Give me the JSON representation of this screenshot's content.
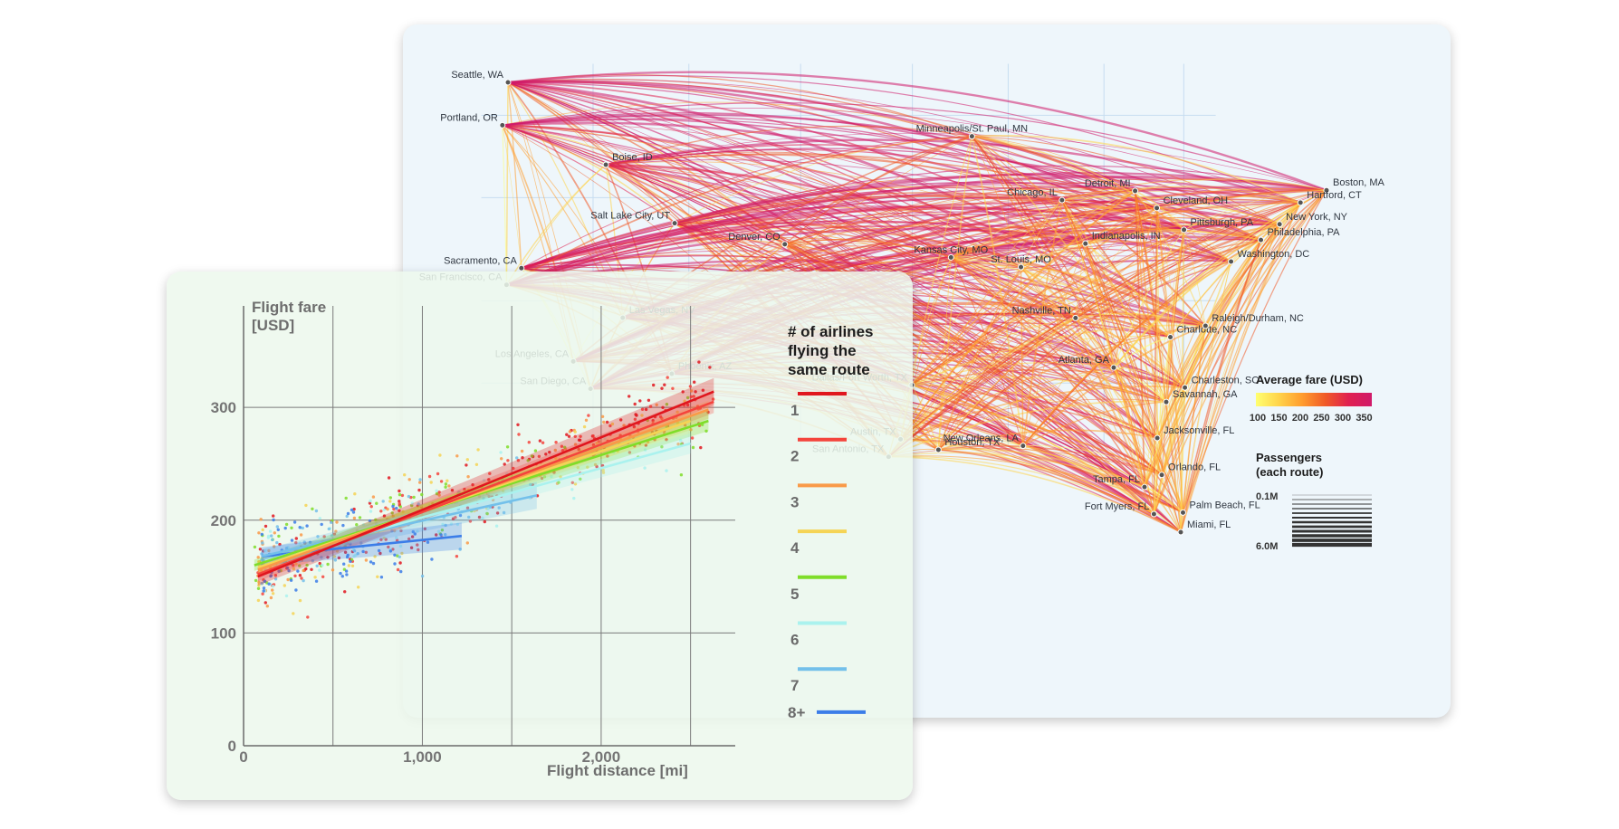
{
  "map": {
    "cities": [
      {
        "name": "Seattle, WA",
        "lon": -122.33,
        "lat": 47.6
      },
      {
        "name": "Portland, OR",
        "lon": -122.68,
        "lat": 45.52
      },
      {
        "name": "Boise, ID",
        "lon": -116.2,
        "lat": 43.6
      },
      {
        "name": "Salt Lake City, UT",
        "lon": -111.89,
        "lat": 40.76
      },
      {
        "name": "Sacramento, CA",
        "lon": -121.49,
        "lat": 38.58
      },
      {
        "name": "San Francisco, CA",
        "lon": -122.42,
        "lat": 37.77
      },
      {
        "name": "Las Vegas, NV",
        "lon": -115.14,
        "lat": 36.17
      },
      {
        "name": "Los Angeles, CA",
        "lon": -118.24,
        "lat": 34.05
      },
      {
        "name": "San Diego, CA",
        "lon": -117.16,
        "lat": 32.72
      },
      {
        "name": "Phoenix, AZ",
        "lon": -112.07,
        "lat": 33.45
      },
      {
        "name": "Denver, CO",
        "lon": -104.99,
        "lat": 39.74
      },
      {
        "name": "Minneapolis/St. Paul, MN",
        "lon": -93.27,
        "lat": 44.98
      },
      {
        "name": "Kansas City, MO",
        "lon": -94.58,
        "lat": 39.1
      },
      {
        "name": "Dallas/Fort Worth, TX",
        "lon": -97.04,
        "lat": 32.9
      },
      {
        "name": "Austin, TX",
        "lon": -97.74,
        "lat": 30.27
      },
      {
        "name": "San Antonio, TX",
        "lon": -98.49,
        "lat": 29.42
      },
      {
        "name": "Houston, TX",
        "lon": -95.37,
        "lat": 29.76
      },
      {
        "name": "New Orleans, LA",
        "lon": -90.07,
        "lat": 29.95
      },
      {
        "name": "Chicago, IL",
        "lon": -87.63,
        "lat": 41.88
      },
      {
        "name": "St. Louis, MO",
        "lon": -90.2,
        "lat": 38.63
      },
      {
        "name": "Detroit, MI",
        "lon": -83.05,
        "lat": 42.33
      },
      {
        "name": "Cleveland, OH",
        "lon": -81.69,
        "lat": 41.5
      },
      {
        "name": "Indianapolis, IN",
        "lon": -86.16,
        "lat": 39.77
      },
      {
        "name": "Nashville, TN",
        "lon": -86.78,
        "lat": 36.16
      },
      {
        "name": "Atlanta, GA",
        "lon": -84.39,
        "lat": 33.75
      },
      {
        "name": "Pittsburgh, PA",
        "lon": -79.99,
        "lat": 40.44
      },
      {
        "name": "Charlotte, NC",
        "lon": -80.84,
        "lat": 35.23
      },
      {
        "name": "Raleigh/Durham, NC",
        "lon": -78.64,
        "lat": 35.78
      },
      {
        "name": "Charleston, SC",
        "lon": -79.93,
        "lat": 32.78
      },
      {
        "name": "Savannah, GA",
        "lon": -81.1,
        "lat": 32.08
      },
      {
        "name": "Jacksonville, FL",
        "lon": -81.66,
        "lat": 30.33
      },
      {
        "name": "Orlando, FL",
        "lon": -81.38,
        "lat": 28.54
      },
      {
        "name": "Tampa, FL",
        "lon": -82.46,
        "lat": 27.95
      },
      {
        "name": "Fort Myers, FL",
        "lon": -81.87,
        "lat": 26.64
      },
      {
        "name": "Palm Beach, FL",
        "lon": -80.05,
        "lat": 26.71
      },
      {
        "name": "Miami, FL",
        "lon": -80.19,
        "lat": 25.76
      },
      {
        "name": "Boston, MA",
        "lon": -71.06,
        "lat": 42.36
      },
      {
        "name": "Hartford, CT",
        "lon": -72.69,
        "lat": 41.76
      },
      {
        "name": "New York, NY",
        "lon": -74.0,
        "lat": 40.71
      },
      {
        "name": "Philadelphia, PA",
        "lon": -75.17,
        "lat": 39.95
      },
      {
        "name": "Washington, DC",
        "lon": -77.04,
        "lat": 38.9
      }
    ],
    "legend": {
      "fare_title": "Average fare (USD)",
      "fare_ticks": [
        "100",
        "150",
        "200",
        "250",
        "300",
        "350"
      ],
      "fare_colors": [
        "#ffff70",
        "#ffd34a",
        "#ff9c2e",
        "#f05a28",
        "#e02050",
        "#d01a6a"
      ],
      "passengers_title_line1": "Passengers",
      "passengers_title_line2": "(each route)",
      "passengers_min": "0.1M",
      "passengers_max": "6.0M"
    }
  },
  "chart_data": {
    "type": "scatter",
    "xlabel": "Flight distance [mi]",
    "ylabel_line1": "Flight fare",
    "ylabel_line2": "[USD]",
    "xlim": [
      0,
      2750
    ],
    "ylim": [
      0,
      390
    ],
    "x_ticks": [
      0,
      1000,
      2000
    ],
    "x_tick_labels": [
      "0",
      "1,000",
      "2,000"
    ],
    "y_ticks": [
      0,
      100,
      200,
      300
    ],
    "y_tick_labels": [
      "0",
      "100",
      "200",
      "300"
    ],
    "grid": true,
    "legend_placement": "right",
    "legend_title": [
      "# of airlines",
      "flying the",
      "same route"
    ],
    "series": [
      {
        "name": "1",
        "color": "#e0161e",
        "fit": {
          "x": [
            80,
            2630
          ],
          "y": [
            150,
            314
          ]
        },
        "ci": [
          8,
          12
        ]
      },
      {
        "name": "2",
        "color": "#f4443c",
        "fit": {
          "x": [
            80,
            2630
          ],
          "y": [
            152,
            305
          ]
        },
        "ci": [
          6,
          10
        ]
      },
      {
        "name": "3",
        "color": "#f99a48",
        "fit": {
          "x": [
            80,
            2600
          ],
          "y": [
            156,
            298
          ]
        },
        "ci": [
          5,
          8
        ]
      },
      {
        "name": "4",
        "color": "#f5d455",
        "fit": {
          "x": [
            80,
            2500
          ],
          "y": [
            158,
            288
          ]
        },
        "ci": [
          5,
          8
        ]
      },
      {
        "name": "5",
        "color": "#7fdd29",
        "fit": {
          "x": [
            60,
            2600
          ],
          "y": [
            160,
            288
          ]
        },
        "ci": [
          5,
          9
        ]
      },
      {
        "name": "6",
        "color": "#aaf2ee",
        "fit": {
          "x": [
            120,
            2500
          ],
          "y": [
            164,
            268
          ]
        },
        "ci": [
          5,
          9
        ]
      },
      {
        "name": "7",
        "color": "#73c0ea",
        "fit": {
          "x": [
            100,
            1640
          ],
          "y": [
            168,
            222
          ]
        },
        "ci": [
          6,
          12
        ]
      },
      {
        "name": "8+",
        "color": "#3b7de8",
        "fit": {
          "x": [
            100,
            1220
          ],
          "y": [
            168,
            186
          ]
        },
        "ci": [
          8,
          12
        ]
      }
    ]
  }
}
